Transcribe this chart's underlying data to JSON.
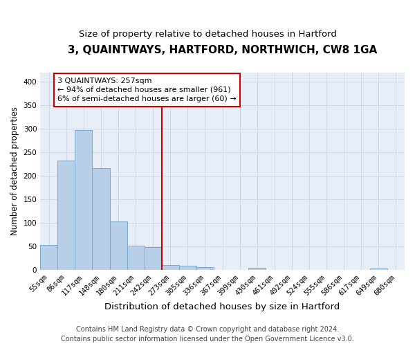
{
  "title": "3, QUAINTWAYS, HARTFORD, NORTHWICH, CW8 1GA",
  "subtitle": "Size of property relative to detached houses in Hartford",
  "xlabel": "Distribution of detached houses by size in Hartford",
  "ylabel": "Number of detached properties",
  "categories": [
    "55sqm",
    "86sqm",
    "117sqm",
    "148sqm",
    "180sqm",
    "211sqm",
    "242sqm",
    "273sqm",
    "305sqm",
    "336sqm",
    "367sqm",
    "399sqm",
    "430sqm",
    "461sqm",
    "492sqm",
    "524sqm",
    "555sqm",
    "586sqm",
    "617sqm",
    "649sqm",
    "680sqm"
  ],
  "values": [
    53,
    233,
    298,
    216,
    103,
    52,
    49,
    10,
    9,
    6,
    0,
    0,
    5,
    0,
    0,
    0,
    0,
    0,
    0,
    3,
    0
  ],
  "bar_color": "#b8cfe8",
  "bar_edge_color": "#7aaad0",
  "vline_x_index": 7,
  "vline_color": "#cc0000",
  "annotation_line1": "3 QUAINTWAYS: 257sqm",
  "annotation_line2": "← 94% of detached houses are smaller (961)",
  "annotation_line3": "6% of semi-detached houses are larger (60) →",
  "annotation_box_color": "#cc0000",
  "annotation_box_fill": "#ffffff",
  "ylim": [
    0,
    420
  ],
  "yticks": [
    0,
    50,
    100,
    150,
    200,
    250,
    300,
    350,
    400
  ],
  "grid_color": "#d0d8e8",
  "bg_color": "#e8eef8",
  "footer_line1": "Contains HM Land Registry data © Crown copyright and database right 2024.",
  "footer_line2": "Contains public sector information licensed under the Open Government Licence v3.0.",
  "title_fontsize": 11,
  "subtitle_fontsize": 9.5,
  "xlabel_fontsize": 9.5,
  "ylabel_fontsize": 8.5,
  "tick_fontsize": 7.5,
  "annotation_fontsize": 8,
  "footer_fontsize": 7
}
